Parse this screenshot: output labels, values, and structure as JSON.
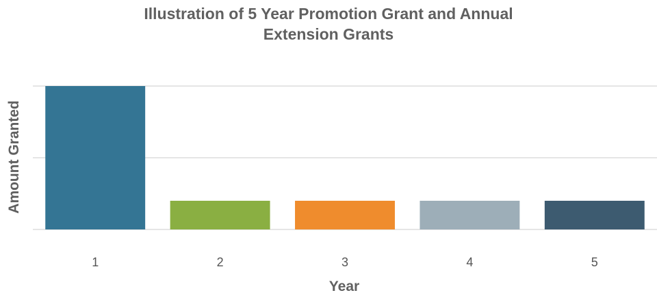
{
  "chart_data": {
    "type": "bar",
    "title_lines": [
      "Illustration of 5 Year Promotion Grant and Annual",
      "Extension Grants"
    ],
    "xlabel": "Year",
    "ylabel": "Amount Granted",
    "categories": [
      "1",
      "2",
      "3",
      "4",
      "5"
    ],
    "values": [
      5,
      1,
      1,
      1,
      1
    ],
    "ylim": [
      0,
      5
    ],
    "y_gridlines": [
      0,
      2.5,
      5
    ],
    "y_tick_labels_shown": false,
    "grid": true,
    "legend": "none",
    "colors": [
      "#347594",
      "#8aaf42",
      "#ef8c2d",
      "#9daeb8",
      "#3d5b70"
    ],
    "text_color": "#606060",
    "grid_color": "#e5e5e5"
  }
}
